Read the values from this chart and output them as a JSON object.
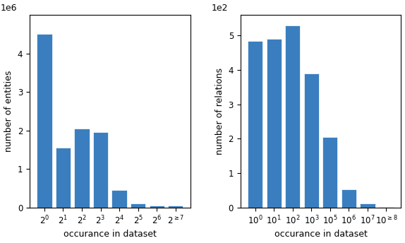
{
  "left": {
    "ylabel": "number of entities",
    "xlabel": "occurance in dataset",
    "bar_labels": [
      "$2^0$",
      "$2^1$",
      "$2^2$",
      "$2^3$",
      "$2^4$",
      "$2^5$",
      "$2^6$",
      "$2^{\\geq 7}$"
    ],
    "values": [
      4500000,
      1550000,
      2050000,
      1950000,
      450000,
      100000,
      55000,
      40000
    ],
    "bar_color": "#3a7ebf",
    "ylim": [
      0,
      5000000
    ],
    "yticks": [
      0,
      1000000,
      2000000,
      3000000,
      4000000
    ],
    "ytick_labels": [
      "0",
      "1",
      "2",
      "3",
      "4"
    ],
    "scale_text": "1e6"
  },
  "right": {
    "ylabel": "number of relations",
    "xlabel": "occurance in dataset",
    "bar_labels": [
      "$10^0$",
      "$10^1$",
      "$10^2$",
      "$10^3$",
      "$10^5$",
      "$10^6$",
      "$10^7$",
      "$10^{\\geq 8}$"
    ],
    "values": [
      485,
      490,
      530,
      390,
      205,
      52,
      12,
      2
    ],
    "bar_color": "#3a7ebf",
    "ylim": [
      0,
      560
    ],
    "yticks": [
      0,
      100,
      200,
      300,
      400,
      500
    ],
    "ytick_labels": [
      "0",
      "1",
      "2",
      "3",
      "4",
      "5"
    ],
    "scale_text": "1e2"
  }
}
